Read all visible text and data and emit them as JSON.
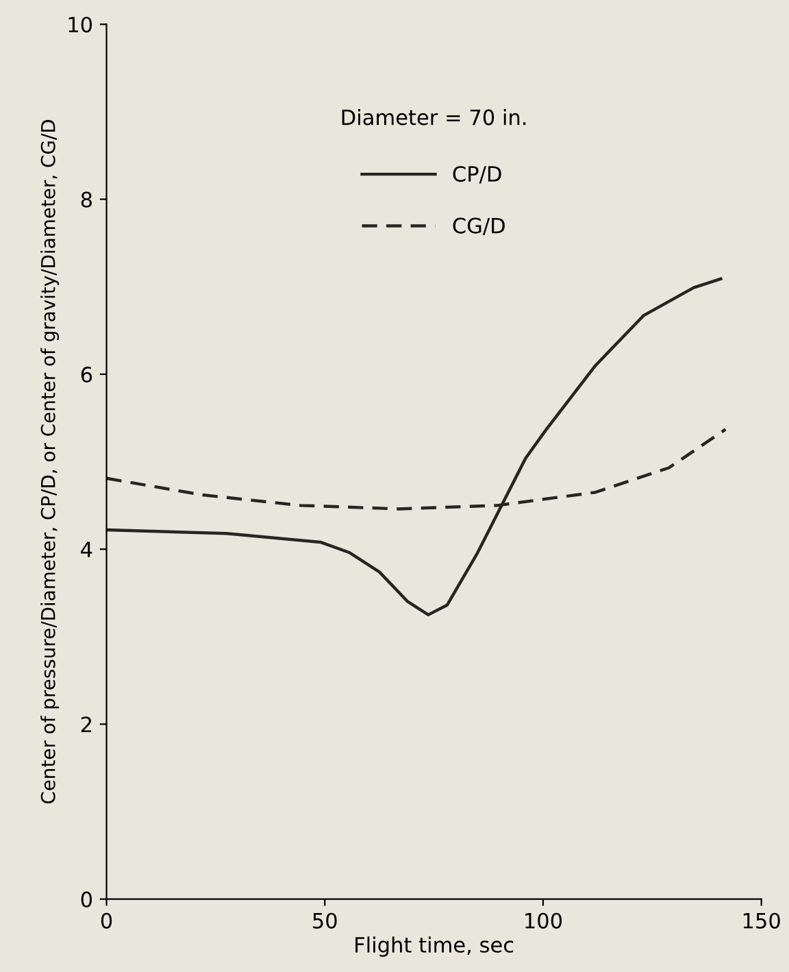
{
  "chart_data": {
    "type": "line",
    "xlabel": "Flight time, sec",
    "ylabel": "Center of pressure/Diameter, CP/D, or Center of gravity/Diameter, CG/D",
    "annotations": [
      "Diameter = 70 in."
    ],
    "xlim": [
      0,
      150
    ],
    "xticks": [
      0,
      50,
      100,
      150
    ],
    "ylim": [
      0,
      10
    ],
    "yticks": [
      0,
      2,
      4,
      6,
      8,
      10
    ],
    "grid": false,
    "legend": "top",
    "marker": "none",
    "series": [
      {
        "name": "CP/D",
        "color": "#2a2420",
        "line_style": "solid",
        "x": [
          0,
          27.5,
          49,
          55.7,
          62.5,
          69,
          73.7,
          78,
          85,
          90.5,
          96,
          100.6,
          112,
          123,
          134.5,
          140.7
        ],
        "values": [
          4.22,
          4.18,
          4.08,
          3.96,
          3.74,
          3.4,
          3.25,
          3.36,
          3.96,
          4.5,
          5.04,
          5.36,
          6.1,
          6.67,
          6.99,
          7.09
        ]
      },
      {
        "name": "CG/D",
        "color": "#2a2420",
        "line_style": "dashed",
        "x": [
          0,
          22,
          44.5,
          67,
          89.5,
          112,
          128.8,
          141.8
        ],
        "values": [
          4.81,
          4.62,
          4.5,
          4.46,
          4.5,
          4.65,
          4.93,
          5.37
        ]
      }
    ]
  }
}
